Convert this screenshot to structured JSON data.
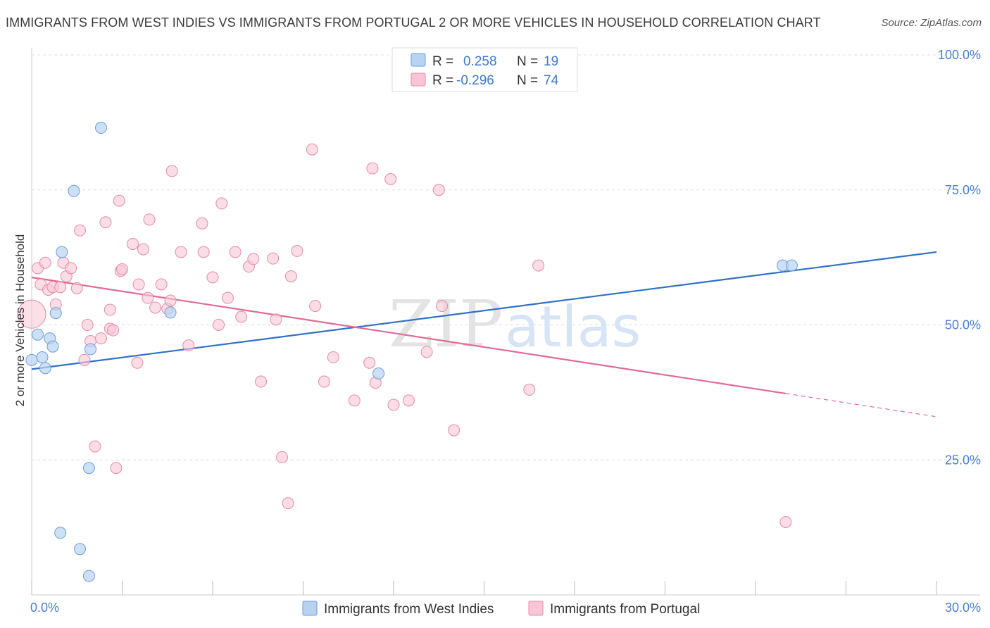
{
  "title": "IMMIGRANTS FROM WEST INDIES VS IMMIGRANTS FROM PORTUGAL 2 OR MORE VEHICLES IN HOUSEHOLD CORRELATION CHART",
  "source": "Source: ZipAtlas.com",
  "watermark": {
    "zip": "ZIP",
    "atlas": "atlas"
  },
  "colors": {
    "west_indies_fill": "#b8d3f2",
    "west_indies_stroke": "#6a9fdc",
    "west_indies_line": "#3070c8",
    "portugal_fill": "#f8c6d6",
    "portugal_stroke": "#e88aa8",
    "portugal_line": "#e06a96",
    "tick_text": "#4a7fd0",
    "grid": "#dddddd"
  },
  "legend": {
    "rows": [
      {
        "r_label": "R =",
        "r_value": "0.258",
        "n_label": "N =",
        "n_value": "19"
      },
      {
        "r_label": "R =",
        "r_value": "-0.296",
        "n_label": "N =",
        "n_value": "74"
      }
    ]
  },
  "chart_data": {
    "type": "scatter",
    "title": "IMMIGRANTS FROM WEST INDIES VS IMMIGRANTS FROM PORTUGAL 2 OR MORE VEHICLES IN HOUSEHOLD CORRELATION CHART",
    "xlabel": "",
    "ylabel": "2 or more Vehicles in Household",
    "xlim": [
      0,
      30
    ],
    "ylim": [
      0,
      100
    ],
    "x_tick_labels": [
      "0.0%",
      "30.0%"
    ],
    "y_ticks": [
      25,
      50,
      75,
      100
    ],
    "y_tick_labels": [
      "25.0%",
      "50.0%",
      "75.0%",
      "100.0%"
    ],
    "grid": true,
    "legend_position": "top-center",
    "series": [
      {
        "name": "Immigrants from West Indies",
        "points": [
          [
            0.0,
            43.5
          ],
          [
            0.2,
            48.2
          ],
          [
            0.35,
            44.0
          ],
          [
            0.45,
            42.0
          ],
          [
            0.6,
            47.5
          ],
          [
            0.7,
            46.0
          ],
          [
            0.8,
            52.2
          ],
          [
            1.0,
            63.5
          ],
          [
            1.4,
            74.8
          ],
          [
            1.9,
            3.5
          ],
          [
            2.3,
            86.5
          ],
          [
            1.6,
            8.5
          ],
          [
            0.95,
            11.5
          ],
          [
            1.9,
            23.5
          ],
          [
            1.95,
            45.5
          ],
          [
            4.6,
            52.3
          ],
          [
            11.5,
            41.0
          ],
          [
            24.9,
            61.0
          ],
          [
            25.2,
            61.0
          ]
        ],
        "trend": {
          "x": [
            0,
            30
          ],
          "y": [
            41.8,
            63.5
          ]
        }
      },
      {
        "name": "Immigrants from Portugal",
        "points": [
          [
            0.0,
            52.0
          ],
          [
            0.2,
            60.5
          ],
          [
            0.3,
            57.5
          ],
          [
            0.45,
            61.5
          ],
          [
            0.55,
            56.5
          ],
          [
            0.7,
            57.0
          ],
          [
            0.8,
            53.8
          ],
          [
            0.95,
            57.0
          ],
          [
            1.05,
            61.5
          ],
          [
            1.15,
            59.0
          ],
          [
            1.3,
            60.5
          ],
          [
            1.5,
            56.8
          ],
          [
            1.6,
            67.5
          ],
          [
            1.75,
            43.5
          ],
          [
            1.85,
            50.0
          ],
          [
            1.95,
            47.0
          ],
          [
            2.1,
            27.5
          ],
          [
            2.3,
            47.5
          ],
          [
            2.45,
            69.0
          ],
          [
            2.6,
            49.3
          ],
          [
            2.6,
            52.8
          ],
          [
            2.8,
            23.5
          ],
          [
            2.7,
            49.0
          ],
          [
            2.9,
            73.0
          ],
          [
            2.95,
            60.0
          ],
          [
            3.0,
            60.3
          ],
          [
            3.35,
            65.0
          ],
          [
            3.5,
            43.0
          ],
          [
            3.55,
            57.5
          ],
          [
            3.7,
            64.0
          ],
          [
            3.85,
            55.0
          ],
          [
            3.9,
            69.5
          ],
          [
            4.1,
            53.2
          ],
          [
            4.3,
            57.5
          ],
          [
            4.5,
            53.0
          ],
          [
            4.6,
            54.5
          ],
          [
            4.65,
            78.5
          ],
          [
            4.95,
            63.5
          ],
          [
            5.2,
            46.2
          ],
          [
            5.65,
            68.8
          ],
          [
            5.7,
            63.5
          ],
          [
            6.0,
            58.8
          ],
          [
            6.3,
            72.5
          ],
          [
            6.2,
            50.0
          ],
          [
            6.5,
            55.0
          ],
          [
            6.75,
            63.5
          ],
          [
            6.95,
            51.5
          ],
          [
            7.2,
            60.8
          ],
          [
            7.35,
            62.2
          ],
          [
            7.6,
            39.5
          ],
          [
            8.0,
            62.3
          ],
          [
            8.1,
            51.0
          ],
          [
            8.3,
            25.5
          ],
          [
            8.5,
            17.0
          ],
          [
            8.6,
            59.0
          ],
          [
            8.8,
            63.7
          ],
          [
            9.3,
            82.5
          ],
          [
            9.4,
            53.5
          ],
          [
            9.7,
            39.5
          ],
          [
            10.0,
            44.0
          ],
          [
            10.7,
            36.0
          ],
          [
            11.2,
            43.0
          ],
          [
            11.3,
            79.0
          ],
          [
            11.4,
            39.3
          ],
          [
            11.9,
            77.0
          ],
          [
            12.0,
            35.2
          ],
          [
            12.5,
            36.0
          ],
          [
            13.1,
            45.0
          ],
          [
            13.5,
            75.0
          ],
          [
            13.6,
            53.5
          ],
          [
            14.0,
            30.5
          ],
          [
            16.5,
            38.0
          ],
          [
            16.8,
            61.0
          ],
          [
            25.0,
            13.5
          ]
        ],
        "trend": {
          "x": [
            0,
            25.0
          ],
          "y": [
            58.8,
            37.3
          ]
        },
        "trend_dashed": {
          "x": [
            25.0,
            30
          ],
          "y": [
            37.3,
            33.0
          ]
        }
      }
    ]
  }
}
